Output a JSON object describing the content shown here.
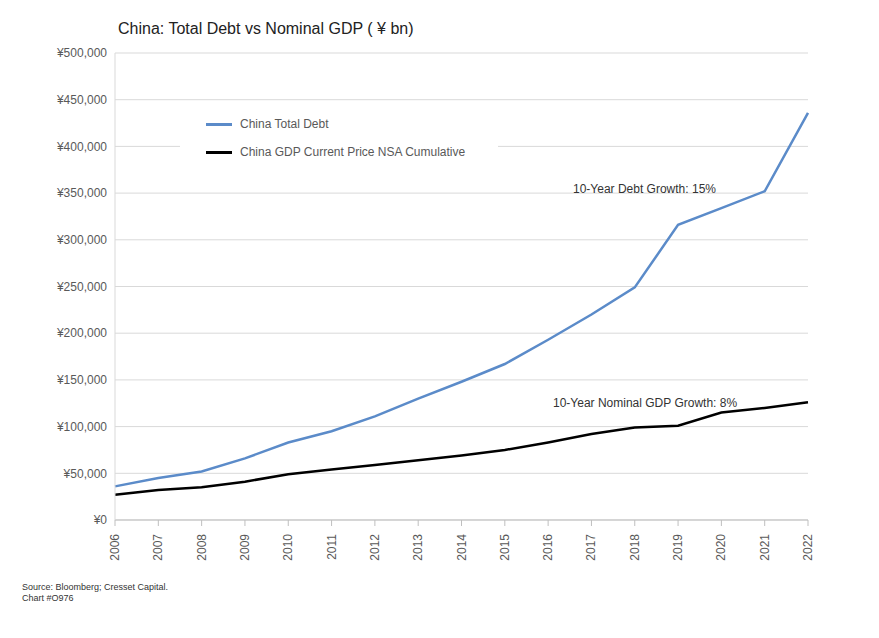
{
  "chart_data": {
    "type": "line",
    "title": "China: Total Debt vs Nominal GDP ( ¥ bn)",
    "categories": [
      "2006",
      "2007",
      "2008",
      "2009",
      "2010",
      "2011",
      "2012",
      "2013",
      "2014",
      "2015",
      "2016",
      "2017",
      "2018",
      "2019",
      "2020",
      "2021",
      "2022"
    ],
    "series": [
      {
        "name": "China Total Debt",
        "color": "#5b8bc9",
        "values": [
          36000,
          45000,
          52000,
          66000,
          83000,
          95000,
          111000,
          130000,
          148000,
          167000,
          193000,
          220000,
          249000,
          316000,
          334000,
          352000,
          436000
        ]
      },
      {
        "name": "China GDP Current Price NSA Cumulative",
        "color": "#000000",
        "values": [
          27000,
          32000,
          35000,
          41000,
          49000,
          54000,
          59000,
          64000,
          69000,
          75000,
          83000,
          92000,
          99000,
          101000,
          115000,
          120000,
          126000
        ]
      }
    ],
    "ylim": [
      0,
      500000
    ],
    "yticks": [
      {
        "value": 0,
        "label": "¥0"
      },
      {
        "value": 50000,
        "label": "¥50,000"
      },
      {
        "value": 100000,
        "label": "¥100,000"
      },
      {
        "value": 150000,
        "label": "¥150,000"
      },
      {
        "value": 200000,
        "label": "¥200,000"
      },
      {
        "value": 250000,
        "label": "¥250,000"
      },
      {
        "value": 300000,
        "label": "¥300,000"
      },
      {
        "value": 350000,
        "label": "¥350,000"
      },
      {
        "value": 400000,
        "label": "¥400,000"
      },
      {
        "value": 450000,
        "label": "¥450,000"
      },
      {
        "value": 500000,
        "label": "¥500,000"
      }
    ],
    "grid": true,
    "legend": "upper left",
    "annotations": [
      "10-Year Debt Growth: 15%",
      "10-Year Nominal GDP Growth: 8%"
    ],
    "footnotes": [
      "Source: Bloomberg; Cresset Capital.",
      "Chart #O976"
    ]
  }
}
